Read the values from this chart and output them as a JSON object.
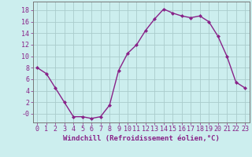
{
  "x": [
    0,
    1,
    2,
    3,
    4,
    5,
    6,
    7,
    8,
    9,
    10,
    11,
    12,
    13,
    14,
    15,
    16,
    17,
    18,
    19,
    20,
    21,
    22,
    23
  ],
  "y": [
    8.0,
    7.0,
    4.5,
    2.0,
    -0.5,
    -0.5,
    -0.8,
    -0.5,
    1.5,
    7.5,
    10.5,
    12.0,
    14.5,
    16.5,
    18.2,
    17.5,
    17.0,
    16.7,
    17.0,
    16.0,
    13.5,
    10.0,
    5.5,
    4.5
  ],
  "line_color": "#882288",
  "marker": "D",
  "marker_size": 2.0,
  "bg_color": "#cceeee",
  "grid_color": "#aacccc",
  "xlabel": "Windchill (Refroidissement éolien,°C)",
  "xlabel_fontsize": 6.5,
  "tick_fontsize": 6,
  "ylim": [
    -1.5,
    19.5
  ],
  "yticks": [
    0,
    2,
    4,
    6,
    8,
    10,
    12,
    14,
    16,
    18
  ],
  "ytick_labels": [
    "-0",
    "2",
    "4",
    "6",
    "8",
    "10",
    "12",
    "14",
    "16",
    "18"
  ],
  "xticks": [
    0,
    1,
    2,
    3,
    4,
    5,
    6,
    7,
    8,
    9,
    10,
    11,
    12,
    13,
    14,
    15,
    16,
    17,
    18,
    19,
    20,
    21,
    22,
    23
  ],
  "spine_color": "#777777",
  "linewidth": 1.0,
  "figsize": [
    3.2,
    2.0
  ],
  "dpi": 100
}
